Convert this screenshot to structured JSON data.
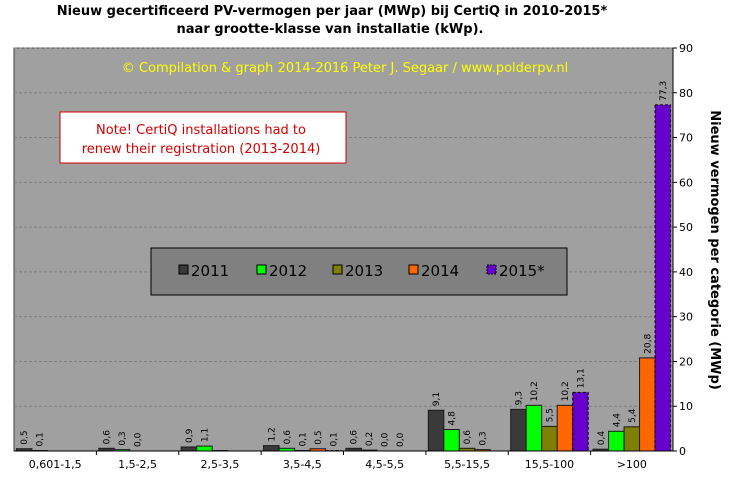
{
  "chart_data": {
    "type": "bar",
    "title": "Nieuw  gecertificeerd PV-vermogen per jaar (MWp) bij CertiQ in 2010-2015*",
    "subtitle": "naar grootte-klasse van installatie (kWp).",
    "ylabel": "Nieuw  vermogen per categorie (MWp)",
    "ylim": [
      0,
      90
    ],
    "yticks": [
      0,
      10,
      20,
      30,
      40,
      50,
      60,
      70,
      80,
      90
    ],
    "y_axis_side": "right",
    "grid": true,
    "legend_position": "center",
    "categories": [
      "0,601-1,5",
      "1,5-2,5",
      "2,5-3,5",
      "3,5-4,5",
      "4,5-5,5",
      "5,5-15,5",
      "15,5-100",
      ">100"
    ],
    "series": [
      {
        "name": "2011",
        "color": "#3a3a3a",
        "values": [
          0.5,
          0.6,
          0.9,
          1.2,
          0.6,
          9.1,
          9.3,
          0.4
        ],
        "labels": [
          "0,5",
          "0,6",
          "0,9",
          "1,2",
          "0,6",
          "9,1",
          "9,3",
          "0,4"
        ]
      },
      {
        "name": "2012",
        "color": "#00ff00",
        "values": [
          0.1,
          0.3,
          1.1,
          0.6,
          0.2,
          4.8,
          10.2,
          4.4
        ],
        "labels": [
          "0,1",
          "0,3",
          "1,1",
          "0,6",
          "0,2",
          "4,8",
          "10,2",
          "4,4"
        ]
      },
      {
        "name": "2013",
        "color": "#7f7f00",
        "values": [
          0.0,
          0.0,
          0.1,
          0.1,
          0.0,
          0.6,
          5.5,
          5.4
        ],
        "labels": [
          "",
          "0,0",
          "",
          "0,1",
          "0,0",
          "0,6",
          "5,5",
          "5,4"
        ]
      },
      {
        "name": "2014",
        "color": "#ff6600",
        "values": [
          0.0,
          0.0,
          0.0,
          0.5,
          0.0,
          0.3,
          10.2,
          20.8
        ],
        "labels": [
          "",
          "",
          "",
          "0,5",
          "0,0",
          "0,3",
          "10,2",
          "20,8"
        ]
      },
      {
        "name": "2015*",
        "color": "#6600cc",
        "dashed": true,
        "values": [
          0.0,
          0.0,
          0.0,
          0.1,
          0.0,
          0.0,
          13.1,
          77.3
        ],
        "labels": [
          "",
          "",
          "",
          "0,1",
          "",
          "",
          "13,1",
          "77,3"
        ]
      }
    ],
    "credit": "© Compilation  & graph 2014-2016 Peter J. Segaar / www.polderpv.nl",
    "note_lines": [
      "Note! CertiQ installations  had to",
      "renew their registration (2013-2014)"
    ]
  },
  "colors": {
    "plot_background": "#a0a0a0",
    "grid": "#808080",
    "credit": "#ffff00",
    "note_border": "#d00000",
    "note_text": "#d00000",
    "legend_faded_text": "#606060"
  }
}
